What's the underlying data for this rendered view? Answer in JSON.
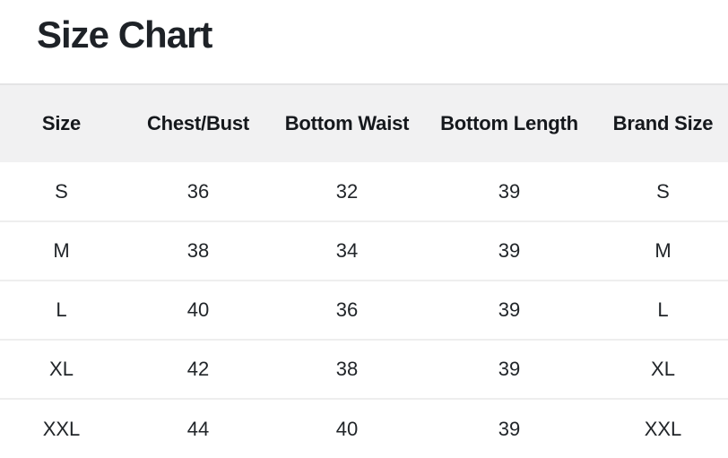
{
  "page": {
    "title": "Size Chart"
  },
  "table": {
    "columns": [
      "Size",
      "Chest/Bust",
      "Bottom Waist",
      "Bottom Length",
      "Brand Size"
    ],
    "rows": [
      [
        "S",
        "36",
        "32",
        "39",
        "S"
      ],
      [
        "M",
        "38",
        "34",
        "39",
        "M"
      ],
      [
        "L",
        "40",
        "36",
        "39",
        "L"
      ],
      [
        "XL",
        "42",
        "38",
        "39",
        "XL"
      ],
      [
        "XXL",
        "44",
        "40",
        "39",
        "XXL"
      ]
    ]
  },
  "colors": {
    "page_bg": "#ffffff",
    "title_text": "#1e2227",
    "header_bg": "#f1f1f2",
    "header_border": "#e4e4e5",
    "row_divider": "#eeeeee",
    "header_text": "#15181c",
    "cell_text": "#212529"
  }
}
